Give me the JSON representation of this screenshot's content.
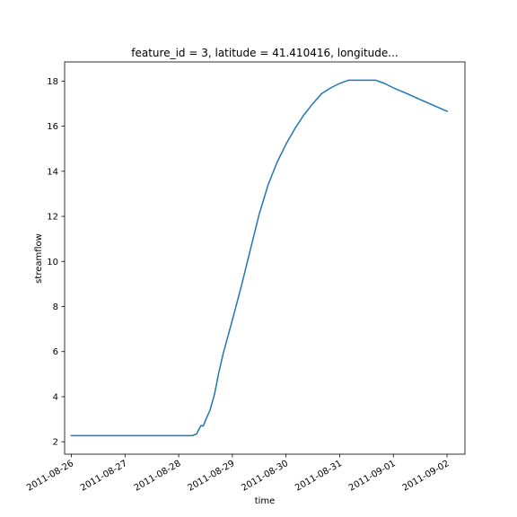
{
  "chart_data": {
    "type": "line",
    "title": "feature_id = 3, latitude = 41.410416, longitude...",
    "xlabel": "time",
    "ylabel": "streamflow",
    "x_ticks": [
      "2011-08-26",
      "2011-08-27",
      "2011-08-28",
      "2011-08-29",
      "2011-08-30",
      "2011-08-31",
      "2011-09-01",
      "2011-09-02"
    ],
    "y_ticks": [
      2,
      4,
      6,
      8,
      10,
      12,
      14,
      16,
      18
    ],
    "xlim": [
      "2011-08-25 21:00",
      "2011-09-02 08:00"
    ],
    "ylim": [
      1.45,
      18.85
    ],
    "grid": false,
    "series": [
      {
        "color": "#1f77b4",
        "points": [
          [
            "2011-08-26 00:00",
            2.27
          ],
          [
            "2011-08-27 00:00",
            2.27
          ],
          [
            "2011-08-28 00:00",
            2.27
          ],
          [
            "2011-08-28 06:00",
            2.27
          ],
          [
            "2011-08-28 08:00",
            2.35
          ],
          [
            "2011-08-28 09:00",
            2.55
          ],
          [
            "2011-08-28 10:00",
            2.72
          ],
          [
            "2011-08-28 11:00",
            2.7
          ],
          [
            "2011-08-28 12:00",
            2.95
          ],
          [
            "2011-08-28 14:00",
            3.4
          ],
          [
            "2011-08-28 16:00",
            4.1
          ],
          [
            "2011-08-28 18:00",
            5.1
          ],
          [
            "2011-08-28 20:00",
            5.95
          ],
          [
            "2011-08-29 00:00",
            7.4
          ],
          [
            "2011-08-29 04:00",
            8.9
          ],
          [
            "2011-08-29 08:00",
            10.5
          ],
          [
            "2011-08-29 12:00",
            12.1
          ],
          [
            "2011-08-29 16:00",
            13.4
          ],
          [
            "2011-08-29 20:00",
            14.4
          ],
          [
            "2011-08-30 00:00",
            15.2
          ],
          [
            "2011-08-30 04:00",
            15.9
          ],
          [
            "2011-08-30 08:00",
            16.5
          ],
          [
            "2011-08-30 12:00",
            17.0
          ],
          [
            "2011-08-30 16:00",
            17.45
          ],
          [
            "2011-08-30 20:00",
            17.7
          ],
          [
            "2011-08-31 00:00",
            17.9
          ],
          [
            "2011-08-31 04:00",
            18.04
          ],
          [
            "2011-08-31 08:00",
            18.04
          ],
          [
            "2011-08-31 12:00",
            18.04
          ],
          [
            "2011-08-31 16:00",
            18.04
          ],
          [
            "2011-08-31 20:00",
            17.9
          ],
          [
            "2011-09-01 00:00",
            17.7
          ],
          [
            "2011-09-01 06:00",
            17.45
          ],
          [
            "2011-09-01 12:00",
            17.18
          ],
          [
            "2011-09-01 18:00",
            16.92
          ],
          [
            "2011-09-02 00:00",
            16.66
          ]
        ]
      }
    ]
  }
}
